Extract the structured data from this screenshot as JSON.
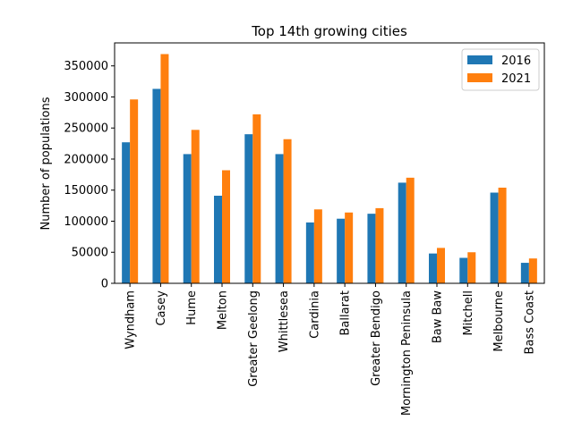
{
  "chart_data": {
    "type": "bar",
    "title": "Top 14th growing cities",
    "xlabel": "",
    "ylabel": "Number of populations",
    "ylim": [
      0,
      387000
    ],
    "yticks": [
      0,
      50000,
      100000,
      150000,
      200000,
      250000,
      300000,
      350000
    ],
    "grid": false,
    "legend_position": "top-right",
    "categories": [
      "Wyndham",
      "Casey",
      "Hume",
      "Melton",
      "Greater Geelong",
      "Whittlesea",
      "Cardinia",
      "Ballarat",
      "Greater Bendigo",
      "Mornington Peninsula",
      "Baw Baw",
      "Mitchell",
      "Melbourne",
      "Bass Coast"
    ],
    "series": [
      {
        "name": "2016",
        "color": "#1f77b4",
        "values": [
          227000,
          313000,
          208000,
          141000,
          240000,
          208000,
          98000,
          104000,
          112000,
          162000,
          48000,
          41000,
          146000,
          33000
        ]
      },
      {
        "name": "2021",
        "color": "#ff7f0e",
        "values": [
          296000,
          369000,
          247000,
          182000,
          272000,
          232000,
          119000,
          114000,
          121000,
          170000,
          57000,
          50000,
          154000,
          40000
        ]
      }
    ]
  }
}
